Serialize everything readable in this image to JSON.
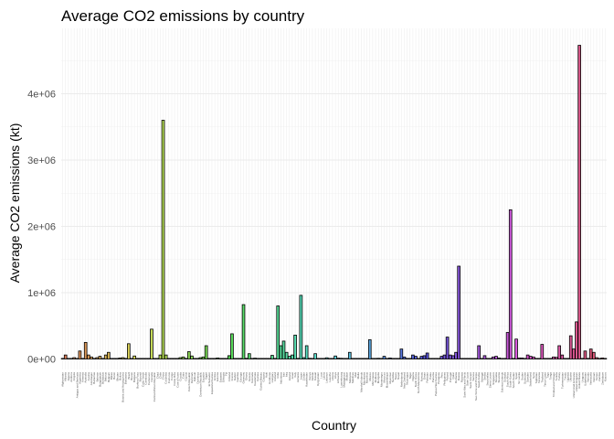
{
  "chart_data": {
    "type": "bar",
    "title": "Average CO2 emissions by country",
    "xlabel": "Country",
    "ylabel": "Average CO2 emissions (kt)",
    "ylim": [
      0,
      4900000
    ],
    "yticks": [
      0,
      1000000,
      2000000,
      3000000,
      4000000
    ],
    "ytick_labels": [
      "0e+00",
      "1e+06",
      "2e+06",
      "3e+06",
      "4e+06"
    ],
    "grid": true,
    "legend": "none",
    "categories": [
      "Afghanistan",
      "Albania",
      "Algeria",
      "Andorra",
      "Angola",
      "Antigua and Barbuda",
      "Argentina",
      "Armenia",
      "Australia",
      "Austria",
      "Azerbaijan",
      "Bahamas",
      "Bahrain",
      "Bangladesh",
      "Barbados",
      "Belarus",
      "Belgium",
      "Belize",
      "Benin",
      "Bhutan",
      "Bolivia",
      "Bosnia and Herzegovina",
      "Botswana",
      "Brazil",
      "Brunei",
      "Bulgaria",
      "Burkina Faso",
      "Burundi",
      "Cabo Verde",
      "Cambodia",
      "Cameroon",
      "Canada",
      "Central African Republic",
      "Chad",
      "Chile",
      "China",
      "Colombia",
      "Comoros",
      "Congo",
      "Costa Rica",
      "Cote d'Ivoire",
      "Croatia",
      "Cuba",
      "Cyprus",
      "Czech Republic",
      "Denmark",
      "Djibouti",
      "Dominica",
      "Dominican Republic",
      "Ecuador",
      "Egypt",
      "El Salvador",
      "Equatorial Guinea",
      "Eritrea",
      "Estonia",
      "Eswatini",
      "Ethiopia",
      "Fiji",
      "Finland",
      "France",
      "Gabon",
      "Gambia",
      "Georgia",
      "Germany",
      "Ghana",
      "Greece",
      "Grenada",
      "Guatemala",
      "Guinea",
      "Guinea-Bissau",
      "Guyana",
      "Haiti",
      "Honduras",
      "Hungary",
      "Iceland",
      "India",
      "Indonesia",
      "Iran",
      "Iraq",
      "Ireland",
      "Israel",
      "Italy",
      "Jamaica",
      "Japan",
      "Jordan",
      "Kazakhstan",
      "Kenya",
      "Kiribati",
      "Kuwait",
      "Kyrgyzstan",
      "Laos",
      "Latvia",
      "Lebanon",
      "Lesotho",
      "Liberia",
      "Libya",
      "Lithuania",
      "Luxembourg",
      "Madagascar",
      "Malawi",
      "Malaysia",
      "Maldives",
      "Mali",
      "Malta",
      "Marshall Islands",
      "Mauritania",
      "Mauritius",
      "Mexico",
      "Micronesia",
      "Moldova",
      "Mongolia",
      "Montenegro",
      "Morocco",
      "Mozambique",
      "Myanmar",
      "Namibia",
      "Nauru",
      "Nepal",
      "Netherlands",
      "New Zealand",
      "Nicaragua",
      "Niger",
      "Nigeria",
      "North Korea",
      "North Macedonia",
      "Norway",
      "Oman",
      "Pakistan",
      "Palau",
      "Panama",
      "Papua New Guinea",
      "Paraguay",
      "Peru",
      "Philippines",
      "Poland",
      "Portugal",
      "Qatar",
      "Romania",
      "Russia",
      "Rwanda",
      "Saint Kitts and Nevis",
      "Saint Lucia",
      "Saint Vincent",
      "Samoa",
      "Sao Tome and Principe",
      "Saudi Arabia",
      "Senegal",
      "Serbia",
      "Seychelles",
      "Sierra Leone",
      "Singapore",
      "Slovakia",
      "Slovenia",
      "Solomon Islands",
      "Somalia",
      "South Africa",
      "South Korea",
      "South Sudan",
      "Spain",
      "Sri Lanka",
      "Sudan",
      "Suriname",
      "Sweden",
      "Switzerland",
      "Syria",
      "Tajikistan",
      "Tanzania",
      "Thailand",
      "Timor-Leste",
      "Togo",
      "Tonga",
      "Trinidad and Tobago",
      "Tunisia",
      "Turkey",
      "Turkmenistan",
      "Tuvalu",
      "Uganda",
      "Ukraine",
      "United Arab Emirates",
      "United Kingdom",
      "United States",
      "Uruguay",
      "Uzbekistan",
      "Vanuatu",
      "Venezuela",
      "Vietnam",
      "Yemen",
      "Zambia",
      "Zimbabwe",
      "Kosovo"
    ],
    "values": [
      2000,
      60000,
      5000,
      500,
      20000,
      500,
      120000,
      5000,
      250000,
      60000,
      30000,
      2000,
      20000,
      40000,
      1000,
      60000,
      100000,
      500,
      5000,
      1000,
      15000,
      20000,
      5000,
      230000,
      8000,
      45000,
      2000,
      300,
      500,
      5000,
      5000,
      450000,
      300,
      1000,
      60000,
      3600000,
      60000,
      200,
      3000,
      6000,
      8000,
      20000,
      30000,
      7000,
      110000,
      45000,
      500,
      100,
      20000,
      30000,
      200000,
      6000,
      5000,
      500,
      15000,
      1000,
      8000,
      1000,
      50000,
      380000,
      3000,
      500,
      8000,
      820000,
      10000,
      80000,
      200,
      12000,
      2000,
      300,
      2000,
      2000,
      8000,
      55000,
      2000,
      800000,
      200000,
      270000,
      100000,
      40000,
      60000,
      360000,
      9000,
      960000,
      20000,
      200000,
      10000,
      100,
      80000,
      8000,
      5000,
      8000,
      18000,
      500,
      500,
      45000,
      12000,
      10000,
      2000,
      1000,
      100000,
      1000,
      1000,
      2000,
      100,
      3000,
      3000,
      290000,
      100,
      5000,
      10000,
      2000,
      40000,
      5000,
      15000,
      3000,
      50,
      5000,
      150000,
      30000,
      5000,
      1000,
      60000,
      40000,
      8000,
      40000,
      50000,
      90000,
      300,
      8000,
      6000,
      5000,
      40000,
      60000,
      330000,
      60000,
      50000,
      100000,
      1400000,
      1000,
      200,
      500,
      200,
      200,
      100,
      200000,
      7000,
      50000,
      500,
      1000,
      30000,
      40000,
      15000,
      200,
      1000,
      400000,
      2250000,
      1000,
      300000,
      15000,
      15000,
      2000,
      60000,
      40000,
      30000,
      5000,
      8000,
      220000,
      500,
      2000,
      100,
      30000,
      25000,
      200000,
      60000,
      50,
      5000,
      350000,
      150000,
      560000,
      4730000,
      6000,
      120000,
      100,
      150000,
      100000,
      20000,
      5000,
      15000,
      8000
    ]
  }
}
